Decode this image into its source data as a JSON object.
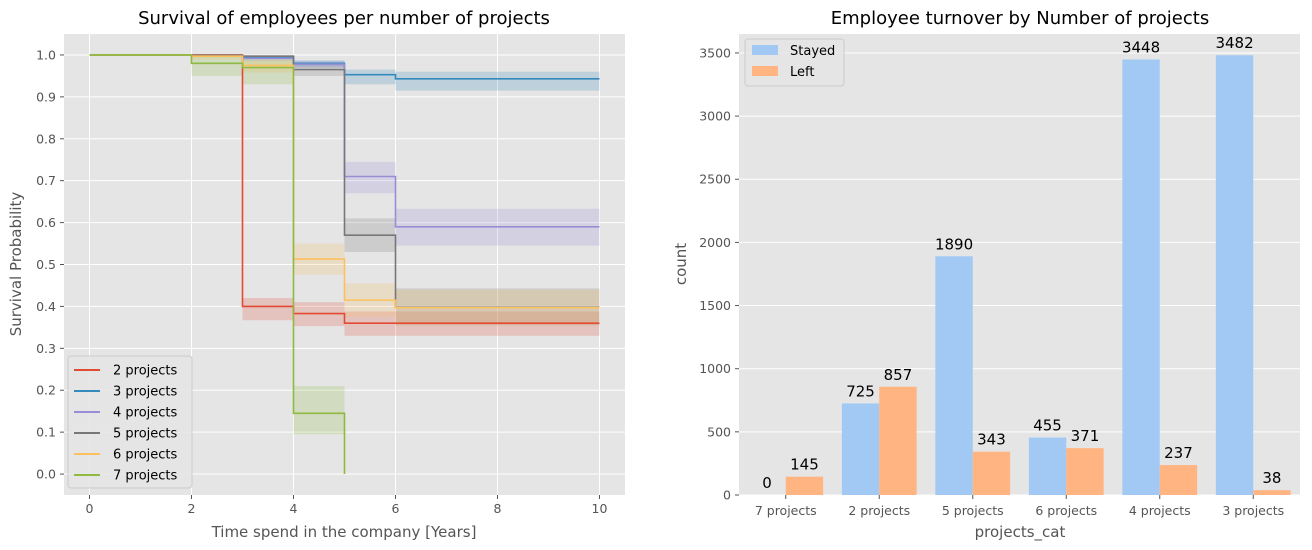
{
  "chart_data": [
    {
      "type": "line",
      "subtype": "survival-step",
      "title": "Survival of employees per number of projects",
      "xlabel": "Time spend in the company [Years]",
      "ylabel": "Survival Probability",
      "xlim": [
        -0.5,
        10.5
      ],
      "ylim": [
        -0.05,
        1.05
      ],
      "xticks": [
        "0",
        "2",
        "4",
        "6",
        "8",
        "10"
      ],
      "xtick_values": [
        0,
        2,
        4,
        6,
        8,
        10
      ],
      "yticks": [
        "0.0",
        "0.1",
        "0.2",
        "0.3",
        "0.4",
        "0.5",
        "0.6",
        "0.7",
        "0.8",
        "0.9",
        "1.0"
      ],
      "ytick_values": [
        0,
        0.1,
        0.2,
        0.3,
        0.4,
        0.5,
        0.6,
        0.7,
        0.8,
        0.9,
        1.0
      ],
      "grid": true,
      "legend_position": "lower-left",
      "series": [
        {
          "name": "2 projects",
          "color": "#E24A33",
          "points": [
            [
              0,
              1.0
            ],
            [
              2,
              1.0
            ],
            [
              3,
              0.4
            ],
            [
              4,
              0.383
            ],
            [
              5,
              0.36
            ],
            [
              10,
              0.36
            ]
          ],
          "ci": [
            [
              0,
              1.0,
              1.0
            ],
            [
              2,
              1.0,
              1.0
            ],
            [
              3,
              0.367,
              0.42
            ],
            [
              4,
              0.353,
              0.41
            ],
            [
              5,
              0.33,
              0.388
            ],
            [
              10,
              0.33,
              0.388
            ]
          ]
        },
        {
          "name": "3 projects",
          "color": "#348ABD",
          "points": [
            [
              0,
              1.0
            ],
            [
              2,
              0.999
            ],
            [
              3,
              0.995
            ],
            [
              4,
              0.98
            ],
            [
              5,
              0.953
            ],
            [
              6,
              0.943
            ],
            [
              10,
              0.943
            ]
          ],
          "ci": [
            [
              0,
              1.0,
              1.0
            ],
            [
              2,
              0.997,
              1.0
            ],
            [
              3,
              0.99,
              0.998
            ],
            [
              4,
              0.972,
              0.987
            ],
            [
              5,
              0.93,
              0.965
            ],
            [
              6,
              0.915,
              0.96
            ],
            [
              10,
              0.915,
              0.96
            ]
          ]
        },
        {
          "name": "4 projects",
          "color": "#988ED5",
          "points": [
            [
              0,
              1.0
            ],
            [
              2,
              0.998
            ],
            [
              3,
              0.992
            ],
            [
              4,
              0.978
            ],
            [
              5,
              0.71
            ],
            [
              6,
              0.59
            ],
            [
              10,
              0.59
            ]
          ],
          "ci": [
            [
              0,
              1.0,
              1.0
            ],
            [
              2,
              0.995,
              1.0
            ],
            [
              3,
              0.985,
              0.996
            ],
            [
              4,
              0.968,
              0.986
            ],
            [
              5,
              0.67,
              0.745
            ],
            [
              6,
              0.545,
              0.633
            ],
            [
              10,
              0.545,
              0.633
            ]
          ]
        },
        {
          "name": "5 projects",
          "color": "#777777",
          "points": [
            [
              0,
              1.0
            ],
            [
              2,
              0.999
            ],
            [
              3,
              0.997
            ],
            [
              4,
              0.965
            ],
            [
              5,
              0.57
            ],
            [
              6,
              0.398
            ],
            [
              10,
              0.398
            ]
          ],
          "ci": [
            [
              0,
              1.0,
              1.0
            ],
            [
              2,
              0.996,
              1.0
            ],
            [
              3,
              0.99,
              1.0
            ],
            [
              4,
              0.95,
              0.977
            ],
            [
              5,
              0.53,
              0.61
            ],
            [
              6,
              0.355,
              0.443
            ],
            [
              10,
              0.355,
              0.443
            ]
          ]
        },
        {
          "name": "6 projects",
          "color": "#FBC15E",
          "points": [
            [
              0,
              1.0
            ],
            [
              2,
              0.997
            ],
            [
              3,
              0.975
            ],
            [
              4,
              0.513
            ],
            [
              5,
              0.415
            ],
            [
              6,
              0.397
            ],
            [
              10,
              0.397
            ]
          ],
          "ci": [
            [
              0,
              1.0,
              1.0
            ],
            [
              2,
              0.99,
              1.0
            ],
            [
              3,
              0.958,
              0.988
            ],
            [
              4,
              0.475,
              0.55
            ],
            [
              5,
              0.375,
              0.455
            ],
            [
              6,
              0.355,
              0.44
            ],
            [
              10,
              0.355,
              0.44
            ]
          ]
        },
        {
          "name": "7 projects",
          "color": "#8EBA42",
          "points": [
            [
              0,
              1.0
            ],
            [
              2,
              0.98
            ],
            [
              3,
              0.97
            ],
            [
              4,
              0.145
            ],
            [
              5,
              0.0
            ]
          ],
          "ci": [
            [
              0,
              1.0,
              1.0
            ],
            [
              2,
              0.95,
              1.0
            ],
            [
              3,
              0.93,
              0.99
            ],
            [
              4,
              0.095,
              0.21
            ],
            [
              5,
              0.0,
              0.0
            ]
          ]
        }
      ]
    },
    {
      "type": "bar",
      "title": "Employee turnover by Number of projects",
      "xlabel": "projects_cat",
      "ylabel": "count",
      "categories": [
        "7 projects",
        "2 projects",
        "5 projects",
        "6 projects",
        "4 projects",
        "3 projects"
      ],
      "ylim": [
        0,
        3650
      ],
      "yticks": [
        "0",
        "500",
        "1000",
        "1500",
        "2000",
        "2500",
        "3000",
        "3500"
      ],
      "ytick_values": [
        0,
        500,
        1000,
        1500,
        2000,
        2500,
        3000,
        3500
      ],
      "grid": true,
      "legend_position": "top-left",
      "series": [
        {
          "name": "Stayed",
          "color": "#A1C9F4",
          "values": [
            0,
            725,
            1890,
            455,
            3448,
            3482
          ]
        },
        {
          "name": "Left",
          "color": "#FFB482",
          "values": [
            145,
            857,
            343,
            371,
            237,
            38
          ]
        }
      ]
    }
  ],
  "style": {
    "plot_background": "#E5E5E5",
    "grid_color": "#FFFFFF",
    "text_color": "#555555"
  }
}
